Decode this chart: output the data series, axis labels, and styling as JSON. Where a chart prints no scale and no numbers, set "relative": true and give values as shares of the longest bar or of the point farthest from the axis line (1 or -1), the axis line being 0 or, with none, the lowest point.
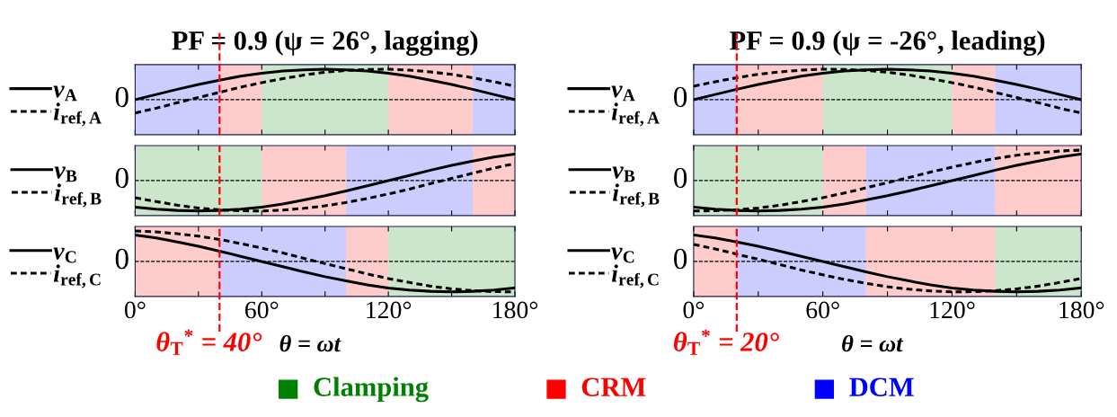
{
  "chart_data": [
    {
      "type": "line",
      "title": "PF = 0.9 (ψ = 26°, lagging)",
      "relative": true,
      "tick_labels": false,
      "legend": "left",
      "xlim": [
        0,
        180
      ],
      "xticks": [
        0,
        30,
        60,
        90,
        120,
        150,
        180
      ],
      "x": [
        0,
        10,
        20,
        30,
        40,
        50,
        60,
        70,
        80,
        90,
        100,
        110,
        120,
        130,
        140,
        150,
        160,
        170,
        180
      ],
      "series": [
        {
          "name": "v$_{A}$",
          "color": "#000000",
          "line_style": "solid",
          "values": [
            0,
            0.17,
            0.34,
            0.5,
            0.64,
            0.77,
            0.87,
            0.94,
            0.98,
            1,
            0.98,
            0.94,
            0.87,
            0.77,
            0.64,
            0.5,
            0.34,
            0.17,
            0
          ]
        },
        {
          "name": "i$_{ref,A}$",
          "color": "#000000",
          "line_style": "dashed",
          "values": [
            -0.44,
            -0.28,
            -0.1,
            0.07,
            0.24,
            0.41,
            0.56,
            0.69,
            0.81,
            0.9,
            0.96,
            0.99,
            1.0,
            0.97,
            0.91,
            0.83,
            0.72,
            0.59,
            0.44
          ]
        }
      ],
      "ref_lines": [
        {
          "axis": "y",
          "value": 0,
          "label": "0",
          "color": "#000000",
          "line_style": "dashed"
        },
        {
          "axis": "x",
          "value": 40,
          "color": "#ff0000",
          "line_style": "dashed"
        }
      ],
      "bands": [
        {
          "axis": "x",
          "from": 0,
          "to": 40,
          "color": "#0000ff"
        },
        {
          "axis": "x",
          "from": 40,
          "to": 60,
          "color": "#ff0000"
        },
        {
          "axis": "x",
          "from": 60,
          "to": 120,
          "color": "#008000"
        },
        {
          "axis": "x",
          "from": 120,
          "to": 160,
          "color": "#ff0000"
        },
        {
          "axis": "x",
          "from": 160,
          "to": 180,
          "color": "#0000ff"
        }
      ]
    },
    {
      "type": "line",
      "title": "PF = 0.9 (ψ = -26°, leading)",
      "relative": true,
      "tick_labels": false,
      "legend": "left",
      "xlim": [
        0,
        180
      ],
      "xticks": [
        0,
        30,
        60,
        90,
        120,
        150,
        180
      ],
      "x": [
        0,
        10,
        20,
        30,
        40,
        50,
        60,
        70,
        80,
        90,
        100,
        110,
        120,
        130,
        140,
        150,
        160,
        170,
        180
      ],
      "series": [
        {
          "name": "v$_{A}$",
          "color": "#000000",
          "line_style": "solid",
          "values": [
            0,
            0.17,
            0.34,
            0.5,
            0.64,
            0.77,
            0.87,
            0.94,
            0.98,
            1,
            0.98,
            0.94,
            0.87,
            0.77,
            0.64,
            0.5,
            0.34,
            0.17,
            0
          ]
        },
        {
          "name": "i$_{ref,A}$",
          "color": "#000000",
          "line_style": "dashed",
          "values": [
            0.44,
            0.59,
            0.72,
            0.83,
            0.91,
            0.97,
            1.0,
            0.99,
            0.96,
            0.9,
            0.81,
            0.69,
            0.56,
            0.41,
            0.24,
            0.07,
            -0.1,
            -0.28,
            -0.44
          ]
        }
      ],
      "ref_lines": [
        {
          "axis": "y",
          "value": 0,
          "label": "0",
          "color": "#000000",
          "line_style": "dashed"
        },
        {
          "axis": "x",
          "value": 20,
          "color": "#ff0000",
          "line_style": "dashed"
        }
      ],
      "bands": [
        {
          "axis": "x",
          "from": 0,
          "to": 20,
          "color": "#0000ff"
        },
        {
          "axis": "x",
          "from": 20,
          "to": 60,
          "color": "#ff0000"
        },
        {
          "axis": "x",
          "from": 60,
          "to": 120,
          "color": "#008000"
        },
        {
          "axis": "x",
          "from": 120,
          "to": 140,
          "color": "#ff0000"
        },
        {
          "axis": "x",
          "from": 140,
          "to": 180,
          "color": "#0000ff"
        }
      ]
    },
    {
      "type": "line",
      "relative": true,
      "tick_labels": false,
      "legend": "left",
      "xlim": [
        0,
        180
      ],
      "xticks": [
        0,
        30,
        60,
        90,
        120,
        150,
        180
      ],
      "x": [
        0,
        10,
        20,
        30,
        40,
        50,
        60,
        70,
        80,
        90,
        100,
        110,
        120,
        130,
        140,
        150,
        160,
        170,
        180
      ],
      "series": [
        {
          "name": "v$_{B}$",
          "color": "#000000",
          "line_style": "solid",
          "values": [
            -0.87,
            -0.94,
            -0.98,
            -1,
            -0.98,
            -0.94,
            -0.87,
            -0.77,
            -0.64,
            -0.5,
            -0.34,
            -0.17,
            0,
            0.17,
            0.34,
            0.5,
            0.64,
            0.77,
            0.87
          ]
        },
        {
          "name": "i$_{ref,B}$",
          "color": "#000000",
          "line_style": "dashed",
          "values": [
            -0.56,
            -0.69,
            -0.81,
            -0.9,
            -0.96,
            -0.99,
            -1.0,
            -0.97,
            -0.91,
            -0.83,
            -0.72,
            -0.59,
            -0.44,
            -0.28,
            -0.1,
            0.07,
            0.24,
            0.41,
            0.56
          ]
        }
      ],
      "ref_lines": [
        {
          "axis": "y",
          "value": 0,
          "label": "0",
          "color": "#000000",
          "line_style": "dashed"
        },
        {
          "axis": "x",
          "value": 40,
          "color": "#ff0000",
          "line_style": "dashed"
        }
      ],
      "bands": [
        {
          "axis": "x",
          "from": 0,
          "to": 60,
          "color": "#008000"
        },
        {
          "axis": "x",
          "from": 60,
          "to": 100,
          "color": "#ff0000"
        },
        {
          "axis": "x",
          "from": 100,
          "to": 160,
          "color": "#0000ff"
        },
        {
          "axis": "x",
          "from": 160,
          "to": 180,
          "color": "#ff0000"
        }
      ],
      "annotations": [
        "Clamping",
        "CRM",
        "DCM"
      ]
    },
    {
      "type": "line",
      "relative": true,
      "tick_labels": false,
      "legend": "left",
      "xlim": [
        0,
        180
      ],
      "xticks": [
        0,
        30,
        60,
        90,
        120,
        150,
        180
      ],
      "x": [
        0,
        10,
        20,
        30,
        40,
        50,
        60,
        70,
        80,
        90,
        100,
        110,
        120,
        130,
        140,
        150,
        160,
        170,
        180
      ],
      "series": [
        {
          "name": "v$_{B}$",
          "color": "#000000",
          "line_style": "solid",
          "values": [
            -0.87,
            -0.94,
            -0.98,
            -1,
            -0.98,
            -0.94,
            -0.87,
            -0.77,
            -0.64,
            -0.5,
            -0.34,
            -0.17,
            0,
            0.17,
            0.34,
            0.5,
            0.64,
            0.77,
            0.87
          ]
        },
        {
          "name": "i$_{ref,B}$",
          "color": "#000000",
          "line_style": "dashed",
          "values": [
            -1.0,
            -0.99,
            -0.96,
            -0.9,
            -0.81,
            -0.69,
            -0.56,
            -0.41,
            -0.24,
            -0.07,
            0.1,
            0.28,
            0.44,
            0.59,
            0.72,
            0.83,
            0.91,
            0.97,
            1.0
          ]
        }
      ],
      "ref_lines": [
        {
          "axis": "y",
          "value": 0,
          "label": "0",
          "color": "#000000",
          "line_style": "dashed"
        },
        {
          "axis": "x",
          "value": 20,
          "color": "#ff0000",
          "line_style": "dashed"
        }
      ],
      "bands": [
        {
          "axis": "x",
          "from": 0,
          "to": 60,
          "color": "#008000"
        },
        {
          "axis": "x",
          "from": 60,
          "to": 80,
          "color": "#ff0000"
        },
        {
          "axis": "x",
          "from": 80,
          "to": 140,
          "color": "#0000ff"
        },
        {
          "axis": "x",
          "from": 140,
          "to": 180,
          "color": "#ff0000"
        }
      ]
    },
    {
      "type": "line",
      "xlabel": "θ = ωt",
      "relative": true,
      "tick_labels": "x",
      "legend": "left",
      "xlim": [
        0,
        180
      ],
      "xticks": [
        {
          "value": 0,
          "label": "0°"
        },
        {
          "value": 30,
          "label": null
        },
        {
          "value": 60,
          "label": "60°"
        },
        {
          "value": 90,
          "label": null
        },
        {
          "value": 120,
          "label": "120°"
        },
        {
          "value": 150,
          "label": null
        },
        {
          "value": 180,
          "label": "180°"
        }
      ],
      "x": [
        0,
        10,
        20,
        30,
        40,
        50,
        60,
        70,
        80,
        90,
        100,
        110,
        120,
        130,
        140,
        150,
        160,
        170,
        180
      ],
      "series": [
        {
          "name": "v$_{C}$",
          "color": "#000000",
          "line_style": "solid",
          "values": [
            0.87,
            0.77,
            0.64,
            0.5,
            0.34,
            0.17,
            0,
            -0.17,
            -0.34,
            -0.5,
            -0.64,
            -0.77,
            -0.87,
            -0.94,
            -0.98,
            -1,
            -0.98,
            -0.94,
            -0.87
          ]
        },
        {
          "name": "i$_{ref,C}$",
          "color": "#000000",
          "line_style": "dashed",
          "values": [
            1.0,
            0.97,
            0.91,
            0.83,
            0.72,
            0.59,
            0.44,
            0.28,
            0.1,
            -0.07,
            -0.24,
            -0.41,
            -0.56,
            -0.69,
            -0.81,
            -0.9,
            -0.96,
            -0.99,
            -1.0
          ]
        }
      ],
      "ref_lines": [
        {
          "axis": "y",
          "value": 0,
          "label": "0",
          "color": "#000000",
          "line_style": "dashed"
        },
        {
          "axis": "x",
          "value": 40,
          "label": "θ$_{T}$$^{*}$ = 40°",
          "color": "#ff0000",
          "line_style": "dashed"
        }
      ],
      "bands": [
        {
          "axis": "x",
          "from": 0,
          "to": 40,
          "color": "#ff0000"
        },
        {
          "axis": "x",
          "from": 40,
          "to": 100,
          "color": "#0000ff"
        },
        {
          "axis": "x",
          "from": 100,
          "to": 120,
          "color": "#ff0000"
        },
        {
          "axis": "x",
          "from": 120,
          "to": 180,
          "color": "#008000"
        }
      ]
    },
    {
      "type": "line",
      "xlabel": "θ = ωt",
      "relative": true,
      "tick_labels": "x",
      "legend": "left",
      "xlim": [
        0,
        180
      ],
      "xticks": [
        {
          "value": 0,
          "label": "0°"
        },
        {
          "value": 30,
          "label": null
        },
        {
          "value": 60,
          "label": "60°"
        },
        {
          "value": 90,
          "label": null
        },
        {
          "value": 120,
          "label": "120°"
        },
        {
          "value": 150,
          "label": null
        },
        {
          "value": 180,
          "label": "180°"
        }
      ],
      "x": [
        0,
        10,
        20,
        30,
        40,
        50,
        60,
        70,
        80,
        90,
        100,
        110,
        120,
        130,
        140,
        150,
        160,
        170,
        180
      ],
      "series": [
        {
          "name": "v$_{C}$",
          "color": "#000000",
          "line_style": "solid",
          "values": [
            0.87,
            0.77,
            0.64,
            0.5,
            0.34,
            0.17,
            0,
            -0.17,
            -0.34,
            -0.5,
            -0.64,
            -0.77,
            -0.87,
            -0.94,
            -0.98,
            -1,
            -0.98,
            -0.94,
            -0.87
          ]
        },
        {
          "name": "i$_{ref,C}$",
          "color": "#000000",
          "line_style": "dashed",
          "values": [
            0.56,
            0.41,
            0.24,
            0.07,
            -0.1,
            -0.28,
            -0.44,
            -0.59,
            -0.72,
            -0.83,
            -0.91,
            -0.97,
            -1.0,
            -0.99,
            -0.96,
            -0.9,
            -0.81,
            -0.69,
            -0.56
          ]
        }
      ],
      "ref_lines": [
        {
          "axis": "y",
          "value": 0,
          "label": "0",
          "color": "#000000",
          "line_style": "dashed"
        },
        {
          "axis": "x",
          "value": 20,
          "label": "θ$_{T}$$^{*}$ = 20°",
          "color": "#ff0000",
          "line_style": "dashed"
        }
      ],
      "bands": [
        {
          "axis": "x",
          "from": 0,
          "to": 20,
          "color": "#ff0000"
        },
        {
          "axis": "x",
          "from": 20,
          "to": 80,
          "color": "#0000ff"
        },
        {
          "axis": "x",
          "from": 80,
          "to": 140,
          "color": "#ff0000"
        },
        {
          "axis": "x",
          "from": 140,
          "to": 180,
          "color": "#008000"
        }
      ]
    }
  ]
}
